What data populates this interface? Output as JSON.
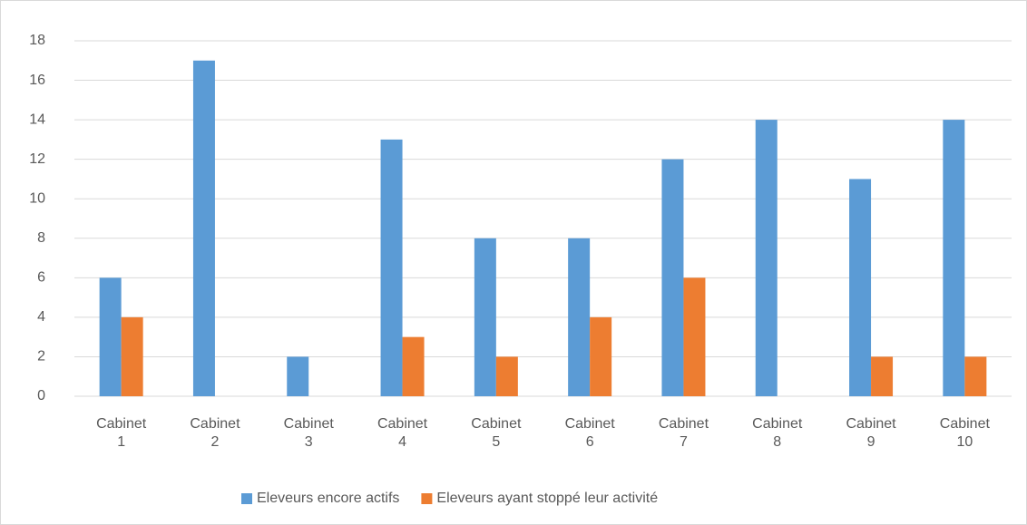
{
  "chart_data": {
    "type": "bar",
    "categories": [
      "Cabinet 1",
      "Cabinet 2",
      "Cabinet 3",
      "Cabinet 4",
      "Cabinet 5",
      "Cabinet 6",
      "Cabinet 7",
      "Cabinet 8",
      "Cabinet 9",
      "Cabinet 10"
    ],
    "series": [
      {
        "name": "Eleveurs encore actifs",
        "color": "#5b9bd5",
        "values": [
          6,
          17,
          2,
          13,
          8,
          8,
          12,
          14,
          11,
          14
        ]
      },
      {
        "name": "Eleveurs ayant stoppé leur activité",
        "color": "#ed7d31",
        "values": [
          4,
          0,
          0,
          3,
          2,
          4,
          6,
          0,
          2,
          2
        ]
      }
    ],
    "ylim": [
      0,
      18
    ],
    "yticks": [
      0,
      2,
      4,
      6,
      8,
      10,
      12,
      14,
      16,
      18
    ],
    "grid": true,
    "legend": "bottom"
  }
}
